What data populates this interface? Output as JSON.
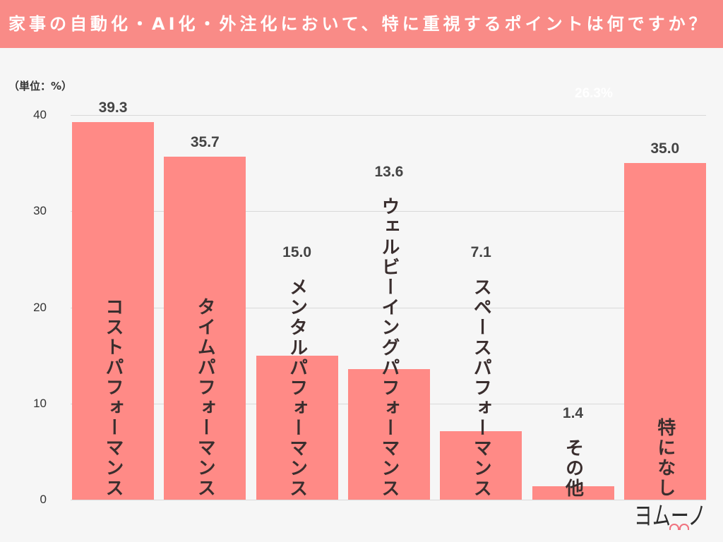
{
  "colors": {
    "header_background": "#F98B87",
    "title_text": "#FFFFFF",
    "bar": "#FF8A86",
    "category_label": "#3A2E2E",
    "value_label": "#444444",
    "background": "#F6F6F6",
    "logo_accent": "#F0727E"
  },
  "brand": {
    "logo_text": "ヨムーノ"
  },
  "chart_data": {
    "type": "bar",
    "title": "家事の自動化・AI化・外注化において、特に重視するポイントは何ですか？",
    "unit_label": "（単位：%）",
    "categories": [
      "コストパフォーマンス",
      "タイムパフォーマンス",
      "メンタルパフォーマンス",
      "ウェルビーイングパフォーマンス",
      "スペースパフォーマンス",
      "その他",
      "特になし"
    ],
    "values": [
      39.3,
      35.7,
      15.0,
      13.6,
      7.1,
      1.4,
      35.0
    ],
    "value_labels": [
      "39.3",
      "35.7",
      "15.0",
      "13.6",
      "7.1",
      "1.4",
      "35.0"
    ],
    "ylim": [
      0,
      40
    ],
    "yticks": [
      0,
      10,
      20,
      30,
      40
    ],
    "grid": true,
    "legend": "none",
    "annotations": [
      "26.3%"
    ]
  }
}
